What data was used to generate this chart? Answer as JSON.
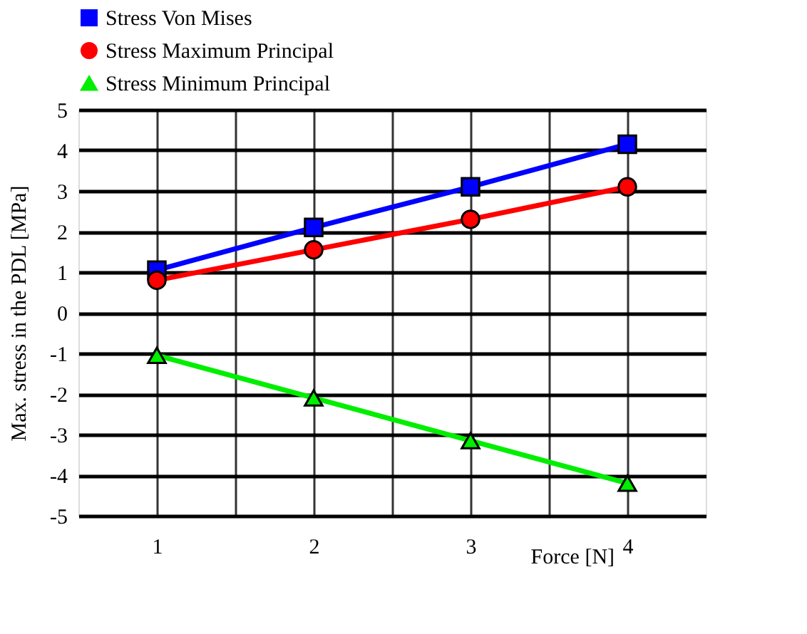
{
  "chart_data": {
    "type": "line",
    "xlabel": "Force [N]",
    "ylabel": "Max. stress in the PDL  [MPa]",
    "x": [
      1,
      2,
      3,
      4
    ],
    "series": [
      {
        "name": "Stress Von Mises",
        "color": "#0000ff",
        "marker": "square",
        "values": [
          1.05,
          2.1,
          3.1,
          4.15
        ]
      },
      {
        "name": "Stress Maximum Principal",
        "color": "#ff0000",
        "marker": "circle",
        "values": [
          0.8,
          1.55,
          2.3,
          3.1
        ]
      },
      {
        "name": "Stress Minimum Principal",
        "color": "#00ee00",
        "marker": "triangle",
        "values": [
          -1.05,
          -2.1,
          -3.15,
          -4.2
        ]
      }
    ],
    "xlim": [
      0.5,
      4.5
    ],
    "xticks": [
      1,
      {
        "value": 1.5,
        "label": null
      },
      2,
      {
        "value": 2.5,
        "label": null
      },
      3,
      {
        "value": 3.5,
        "label": null
      },
      4
    ],
    "ylim": [
      -5,
      5
    ],
    "yticks": [
      -5,
      -4,
      -3,
      -2,
      -1,
      0,
      1,
      2,
      3,
      4,
      5
    ],
    "grid": true,
    "legend": "top",
    "line_style": "solid"
  }
}
